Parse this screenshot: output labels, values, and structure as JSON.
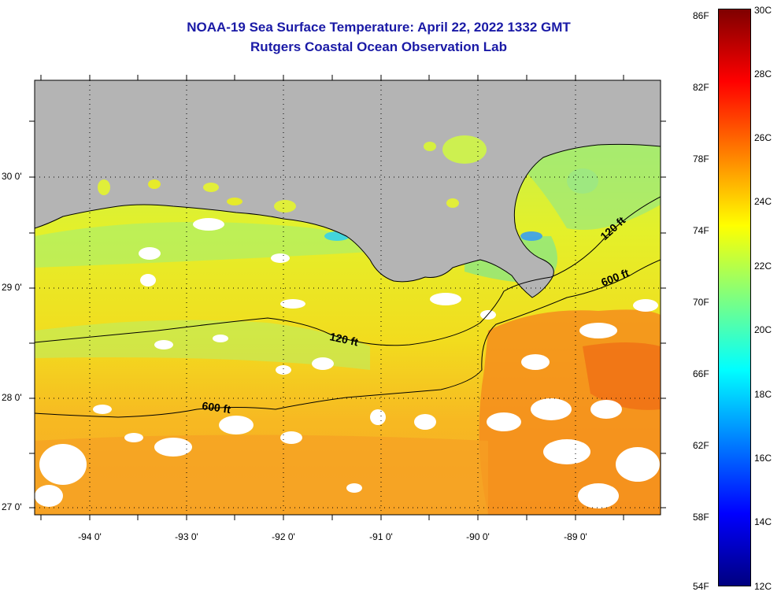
{
  "title": {
    "line1": "NOAA-19 Sea Surface Temperature:  April 22, 2022 1332 GMT",
    "line2": "Rutgers Coastal Ocean Observation Lab"
  },
  "map": {
    "latitude_labels": [
      "30 0'",
      "29 0'",
      "28 0'",
      "27 0'"
    ],
    "longitude_labels": [
      "-94 0'",
      "-93 0'",
      "-92 0'",
      "-91 0'",
      "-90 0'",
      "-89 0'"
    ],
    "contour_labels": [
      "120 ft",
      "600 ft",
      "120 ft",
      "600 ft"
    ],
    "land_color": "#b4b4b4",
    "missing_data_color": "#ffffff",
    "grid": "dotted"
  },
  "colorbar": {
    "fahrenheit_labels": [
      "86F",
      "82F",
      "78F",
      "74F",
      "70F",
      "66F",
      "62F",
      "58F",
      "54F"
    ],
    "celsius_labels": [
      "30C",
      "28C",
      "26C",
      "24C",
      "22C",
      "20C",
      "18C",
      "16C",
      "14C",
      "12C"
    ],
    "colors": [
      "#00007f",
      "#0000ff",
      "#007fff",
      "#00ffff",
      "#7fff7f",
      "#ffff00",
      "#ff7f00",
      "#ff0000",
      "#7f0000"
    ]
  }
}
